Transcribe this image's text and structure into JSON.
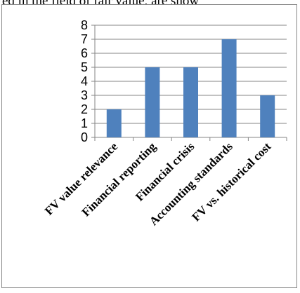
{
  "top_text": "ed in the field of fair value, are show",
  "colors": {
    "bar": "#4F81BD",
    "axis": "#868686",
    "grid": "#868686",
    "text": "#000000",
    "frame": "#888888"
  },
  "chart_data": {
    "type": "bar",
    "categories": [
      "FV value relevance",
      "Financial reporting",
      "Financial crisis",
      "Accounting standards",
      "FV vs. historical cost"
    ],
    "values": [
      2,
      5,
      5,
      7,
      3
    ],
    "title": "",
    "xlabel": "",
    "ylabel": "",
    "ylim": [
      0,
      8
    ],
    "yticks": [
      "0",
      "1",
      "2",
      "3",
      "4",
      "5",
      "6",
      "7",
      "8"
    ],
    "grid": true,
    "legend": "none"
  }
}
